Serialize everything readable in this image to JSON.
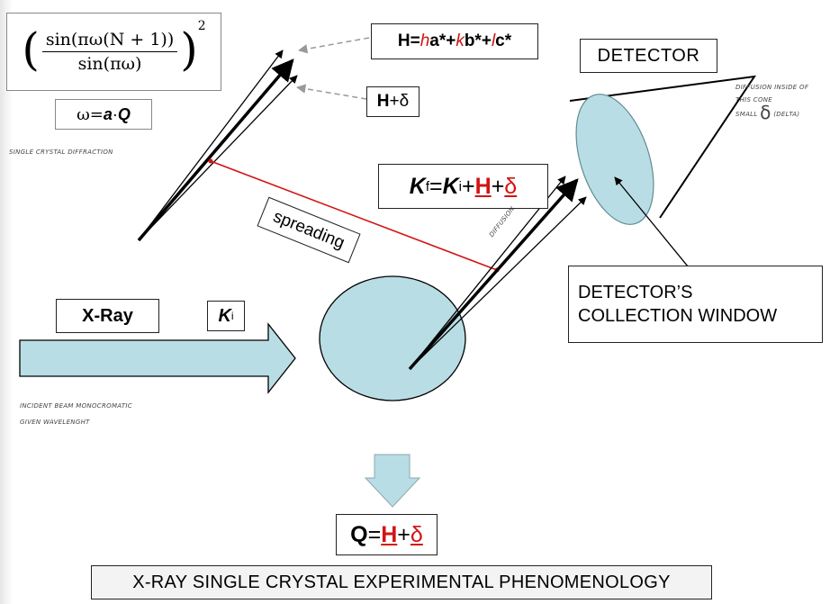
{
  "formula": {
    "numerator": "sin(πω(N + 1))",
    "denominator": "sin(πω)",
    "power": "2",
    "omega_prefix": "ω=",
    "omega_a": "a",
    "omega_dot": "·",
    "omega_Q": "Q"
  },
  "notes": {
    "single_crystal": "SINGLE CRYSTAL DIFFRACTION",
    "incident_line1": "INCIDENT BEAM MONOCROMATIC",
    "incident_line2": "GIVEN WAVELENGHT",
    "diffusion_line1": "DIFFUSION INSIDE OF",
    "diffusion_line2": "THIS CONE",
    "diffusion_line3": "SMALL",
    "diffusion_delta": "δ",
    "diffusion_tail": "(DELTA)",
    "diffusion_beam": "DIFFUSION"
  },
  "labels": {
    "H_prefix": "H=",
    "H_h": "h",
    "H_astar": "a*+",
    "H_k": "k",
    "H_bstar": "b*+",
    "H_l": "l",
    "H_cstar": "c*",
    "H_delta_H": "H",
    "H_delta_rest": "+δ",
    "detector": "DETECTOR",
    "Kf_K": "K",
    "Kf_f": "f",
    "Kf_eq": "=",
    "Kf_Ki": "K",
    "Kf_i": "i",
    "Kf_plus1": "+",
    "Kf_H": "H",
    "Kf_plus2": "+",
    "Kf_delta": "δ",
    "spreading": "spreading",
    "collection_line1": "DETECTOR’S",
    "collection_line2": "COLLECTION WINDOW",
    "xray": "X-Ray",
    "Ki_K": "K",
    "Ki_i": "i",
    "Q_Q": "Q",
    "Q_eq": "=",
    "Q_H": "H",
    "Q_plus": "+",
    "Q_delta": "δ",
    "title": "X-RAY SINGLE CRYSTAL EXPERIMENTAL PHENOMENOLOGY"
  },
  "colors": {
    "crystal_fill": "#b9dde4",
    "arrow_fill": "#b9dde4",
    "accent_red": "#d21414",
    "dashed_gray": "#999999"
  }
}
